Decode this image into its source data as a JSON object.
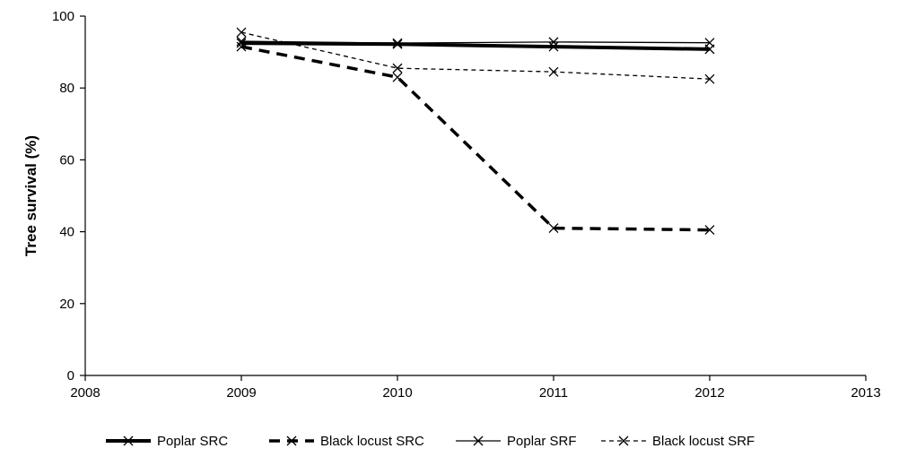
{
  "chart_data": {
    "type": "line",
    "title": "",
    "xlabel": "",
    "ylabel": "Tree survival (%)",
    "xlim": [
      2008,
      2013
    ],
    "ylim": [
      0,
      100
    ],
    "xticks": [
      "2008",
      "2009",
      "2010",
      "2011",
      "2012",
      "2013"
    ],
    "yticks": [
      "0",
      "20",
      "40",
      "60",
      "80",
      "100"
    ],
    "grid": false,
    "legend_position": "bottom",
    "x": [
      2009,
      2010,
      2011,
      2012
    ],
    "series": [
      {
        "name": "Poplar SRC",
        "values": [
          92.5,
          92.2,
          91.5,
          90.8
        ],
        "style": "solid-thick",
        "color": "#000000",
        "marker": "x"
      },
      {
        "name": "Black locust SRC",
        "values": [
          91.5,
          83.0,
          41.0,
          40.5
        ],
        "style": "dashed-thick",
        "color": "#000000",
        "marker": "x"
      },
      {
        "name": "Poplar SRF",
        "values": [
          93.0,
          92.5,
          92.8,
          92.6
        ],
        "style": "solid-thin",
        "color": "#000000",
        "marker": "x"
      },
      {
        "name": "Black locust SRF",
        "values": [
          95.5,
          85.5,
          84.5,
          82.5
        ],
        "style": "dashed-thin",
        "color": "#000000",
        "marker": "x"
      }
    ]
  }
}
